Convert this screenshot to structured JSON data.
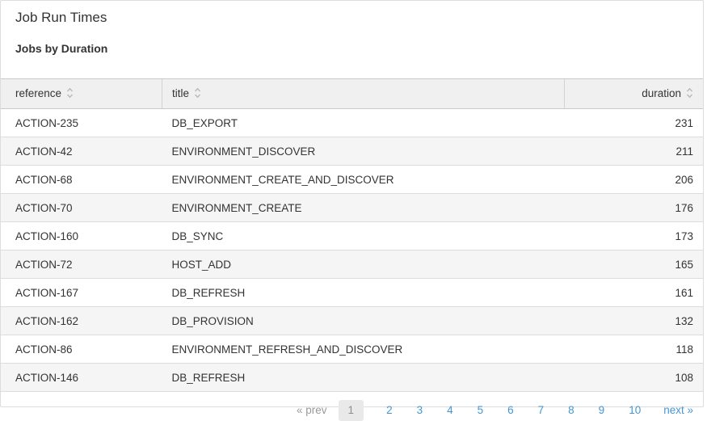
{
  "page": {
    "title": "Job Run Times",
    "subtitle": "Jobs by Duration"
  },
  "table": {
    "columns": [
      {
        "key": "reference",
        "label": "reference",
        "sortable": true,
        "align": "left"
      },
      {
        "key": "title",
        "label": "title",
        "sortable": true,
        "align": "left"
      },
      {
        "key": "duration",
        "label": "duration",
        "sortable": true,
        "align": "right"
      }
    ],
    "rows": [
      [
        "ACTION-235",
        "DB_EXPORT",
        231
      ],
      [
        "ACTION-42",
        "ENVIRONMENT_DISCOVER",
        211
      ],
      [
        "ACTION-68",
        "ENVIRONMENT_CREATE_AND_DISCOVER",
        206
      ],
      [
        "ACTION-70",
        "ENVIRONMENT_CREATE",
        176
      ],
      [
        "ACTION-160",
        "DB_SYNC",
        173
      ],
      [
        "ACTION-72",
        "HOST_ADD",
        165
      ],
      [
        "ACTION-167",
        "DB_REFRESH",
        161
      ],
      [
        "ACTION-162",
        "DB_PROVISION",
        132
      ],
      [
        "ACTION-86",
        "ENVIRONMENT_REFRESH_AND_DISCOVER",
        118
      ],
      [
        "ACTION-146",
        "DB_REFRESH",
        108
      ]
    ]
  },
  "pagination": {
    "prev_label": "« prev",
    "next_label": "next »",
    "pages": [
      "1",
      "2",
      "3",
      "4",
      "5",
      "6",
      "7",
      "8",
      "9",
      "10"
    ],
    "current_page": "1"
  },
  "icons": {
    "sort": "sort-up-down-chevrons"
  },
  "colors": {
    "link_blue": "#4596d3",
    "header_bg": "#f0f0f0",
    "row_stripe": "#f5f5f5",
    "border": "#dddddd",
    "header_border": "#c9c9c9",
    "text": "#333333",
    "muted_gray": "#999999",
    "active_page_bg": "#e9e9e9",
    "sort_icon_gray": "#b9b9b9"
  }
}
